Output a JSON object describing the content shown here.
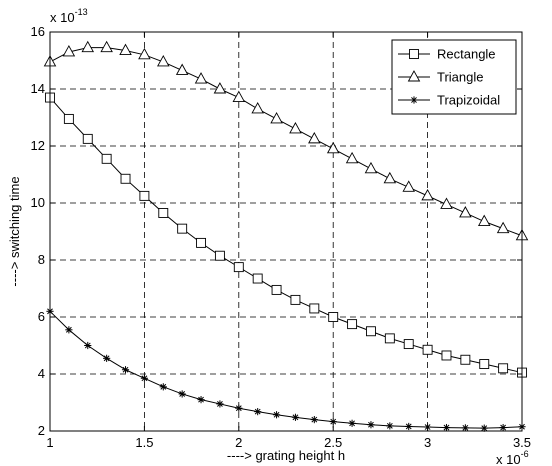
{
  "chart_data": {
    "type": "line",
    "xlabel": "----> grating height h",
    "ylabel": "----> switching time",
    "x_exponent": {
      "base": "x 10",
      "power": "-6"
    },
    "y_exponent": {
      "base": "x 10",
      "power": "-13"
    },
    "xlim": [
      1,
      3.5
    ],
    "ylim": [
      2,
      16
    ],
    "xticks": [
      1,
      1.5,
      2,
      2.5,
      3,
      3.5
    ],
    "xtick_labels": [
      "1",
      "1.5",
      "2",
      "2.5",
      "3",
      "3.5"
    ],
    "yticks": [
      2,
      4,
      6,
      8,
      10,
      12,
      14,
      16
    ],
    "ytick_labels": [
      "2",
      "4",
      "6",
      "8",
      "10",
      "12",
      "14",
      "16"
    ],
    "grid": true,
    "legend_position": "top-right",
    "x": [
      1.0,
      1.1,
      1.2,
      1.3,
      1.4,
      1.5,
      1.6,
      1.7,
      1.8,
      1.9,
      2.0,
      2.1,
      2.2,
      2.3,
      2.4,
      2.5,
      2.6,
      2.7,
      2.8,
      2.9,
      3.0,
      3.1,
      3.2,
      3.3,
      3.4,
      3.5
    ],
    "series": [
      {
        "name": "Rectangle",
        "marker": "square",
        "values": [
          13.7,
          12.95,
          12.25,
          11.55,
          10.85,
          10.25,
          9.65,
          9.1,
          8.6,
          8.15,
          7.75,
          7.35,
          6.95,
          6.6,
          6.3,
          6.0,
          5.75,
          5.5,
          5.25,
          5.05,
          4.85,
          4.65,
          4.5,
          4.35,
          4.2,
          4.05
        ]
      },
      {
        "name": "Triangle",
        "marker": "triangle",
        "values": [
          14.95,
          15.3,
          15.45,
          15.45,
          15.35,
          15.2,
          14.95,
          14.65,
          14.35,
          14.0,
          13.7,
          13.3,
          12.95,
          12.6,
          12.25,
          11.9,
          11.55,
          11.2,
          10.85,
          10.55,
          10.25,
          9.95,
          9.65,
          9.35,
          9.1,
          8.85
        ]
      },
      {
        "name": "Trapizoidal",
        "marker": "star",
        "values": [
          6.2,
          5.55,
          5.0,
          4.55,
          4.15,
          3.85,
          3.55,
          3.3,
          3.1,
          2.95,
          2.8,
          2.68,
          2.57,
          2.48,
          2.4,
          2.33,
          2.27,
          2.22,
          2.18,
          2.16,
          2.14,
          2.12,
          2.11,
          2.1,
          2.12,
          2.15
        ]
      }
    ]
  }
}
